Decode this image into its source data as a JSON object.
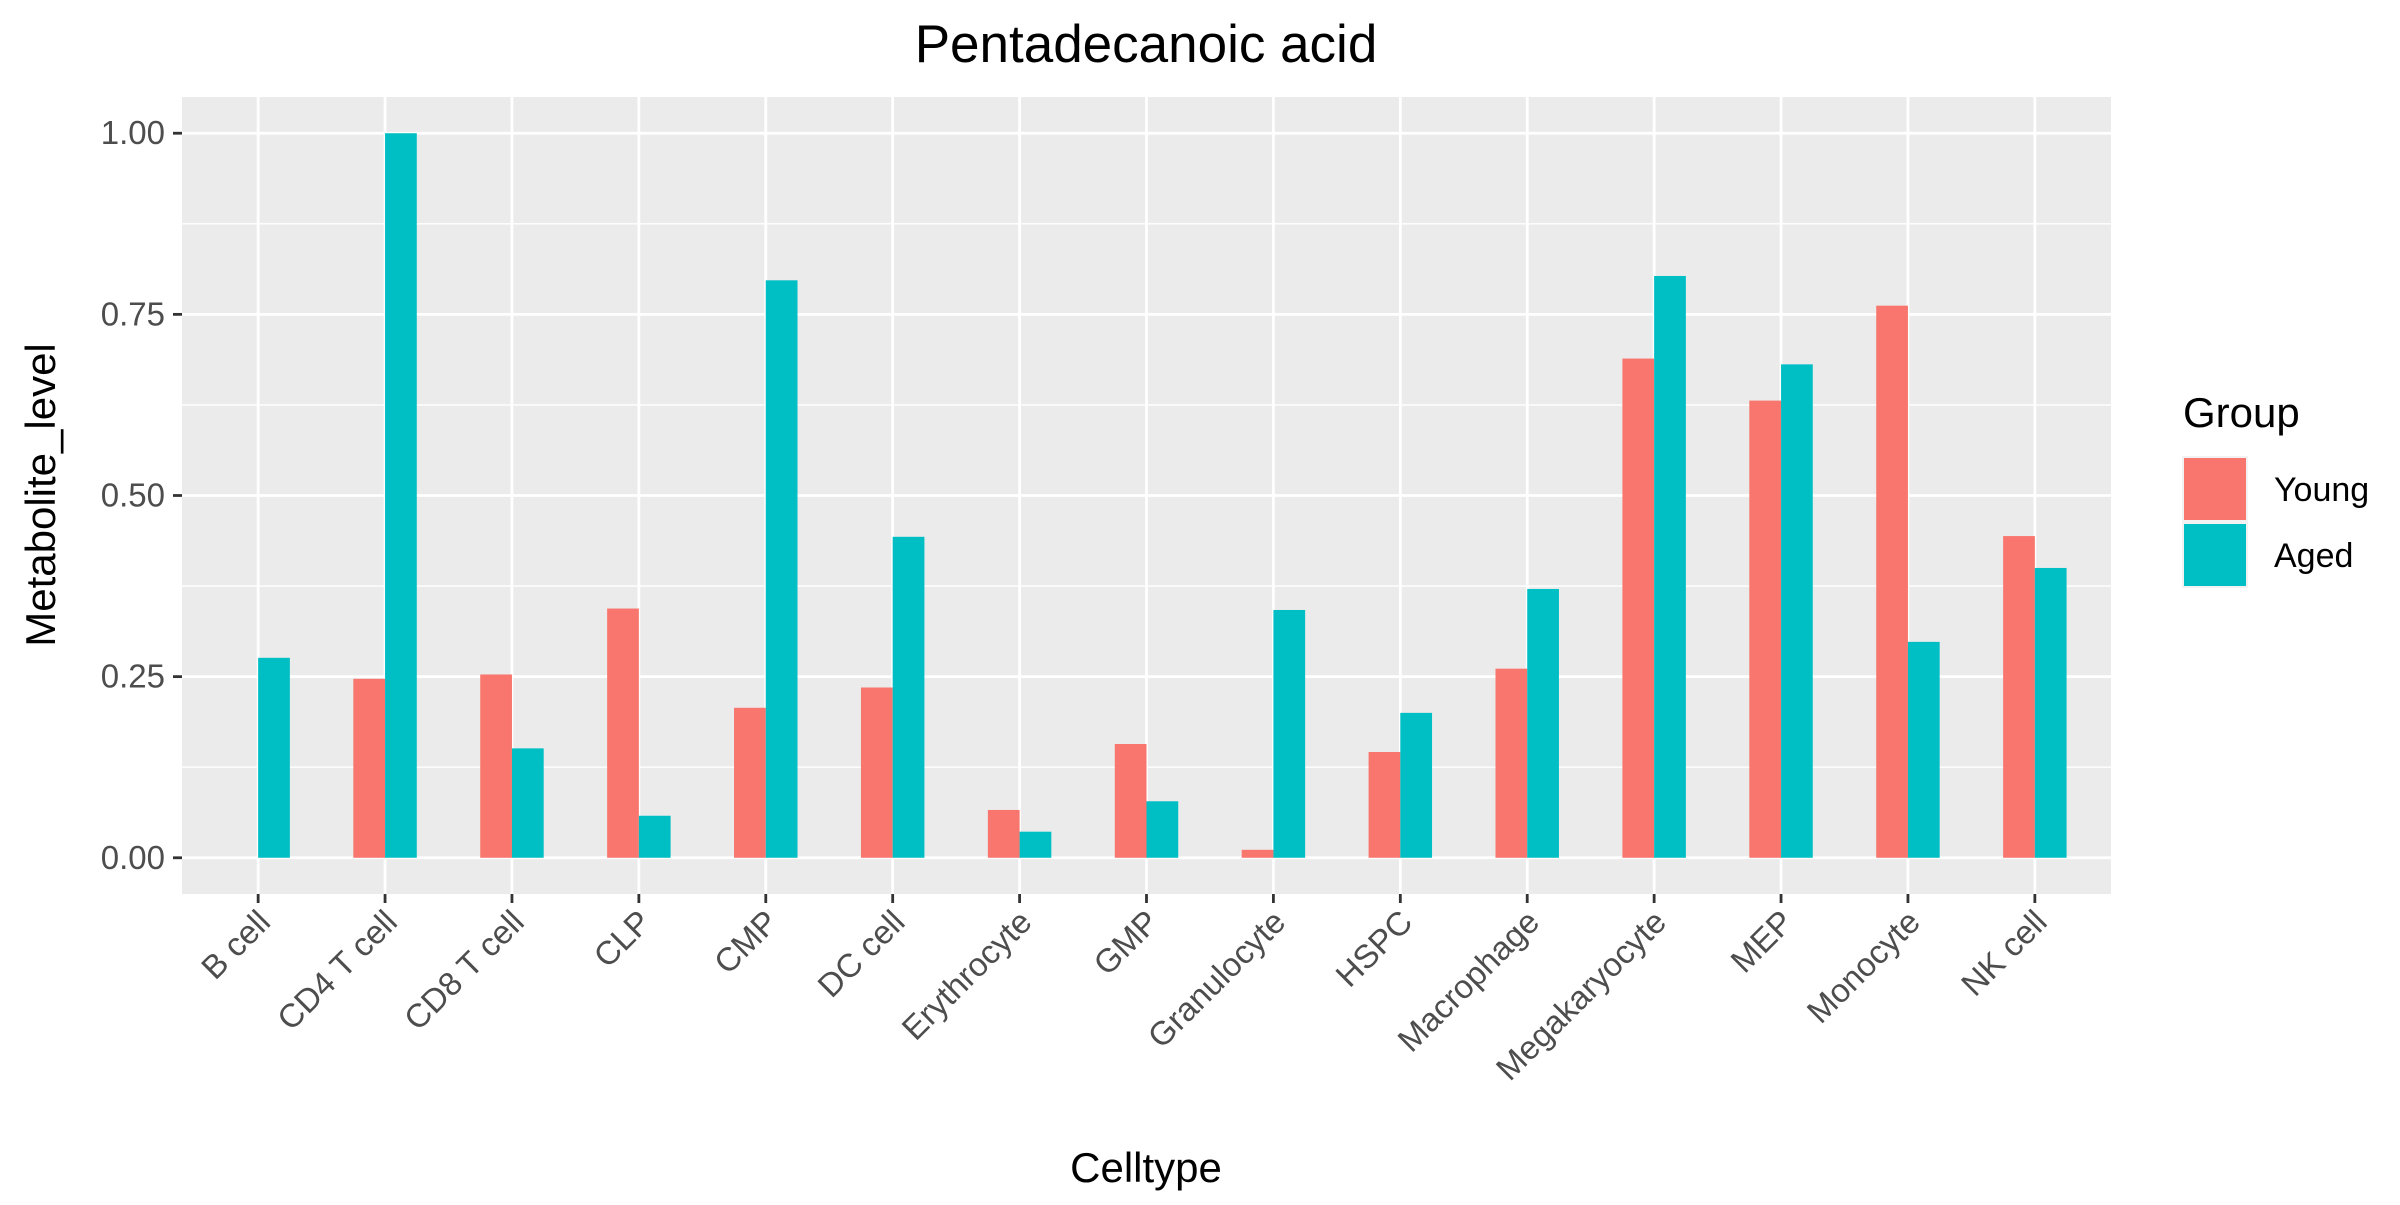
{
  "chart_data": {
    "type": "bar",
    "title": "Pentadecanoic acid",
    "xlabel": "Celltype",
    "ylabel": "Metabolite_level",
    "categories": [
      "B cell",
      "CD4 T cell",
      "CD8 T cell",
      "CLP",
      "CMP",
      "DC cell",
      "Erythrocyte",
      "GMP",
      "Granulocyte",
      "HSPC",
      "Macrophage",
      "Megakaryocyte",
      "MEP",
      "Monocyte",
      "NK cell"
    ],
    "series": [
      {
        "name": "Young",
        "color": "#F8766D",
        "values": [
          null,
          0.247,
          0.253,
          0.344,
          0.207,
          0.235,
          0.066,
          0.157,
          0.011,
          0.146,
          0.261,
          0.689,
          0.631,
          0.762,
          0.444
        ]
      },
      {
        "name": "Aged",
        "color": "#00BFC4",
        "values": [
          0.276,
          1.0,
          0.151,
          0.058,
          0.797,
          0.443,
          0.036,
          0.078,
          0.342,
          0.2,
          0.371,
          0.803,
          0.681,
          0.298,
          0.4
        ]
      }
    ],
    "ylim": [
      -0.05,
      1.05
    ],
    "yticks": [
      0,
      0.25,
      0.5,
      0.75,
      1.0
    ],
    "ytick_labels": [
      "0.00",
      "0.25",
      "0.50",
      "0.75",
      "1.00"
    ],
    "grid": true,
    "legend": {
      "title": "Group",
      "position": "right",
      "entries": [
        "Young",
        "Aged"
      ]
    },
    "panel_background": "#EBEBEB",
    "grid_color": "#FFFFFF"
  }
}
